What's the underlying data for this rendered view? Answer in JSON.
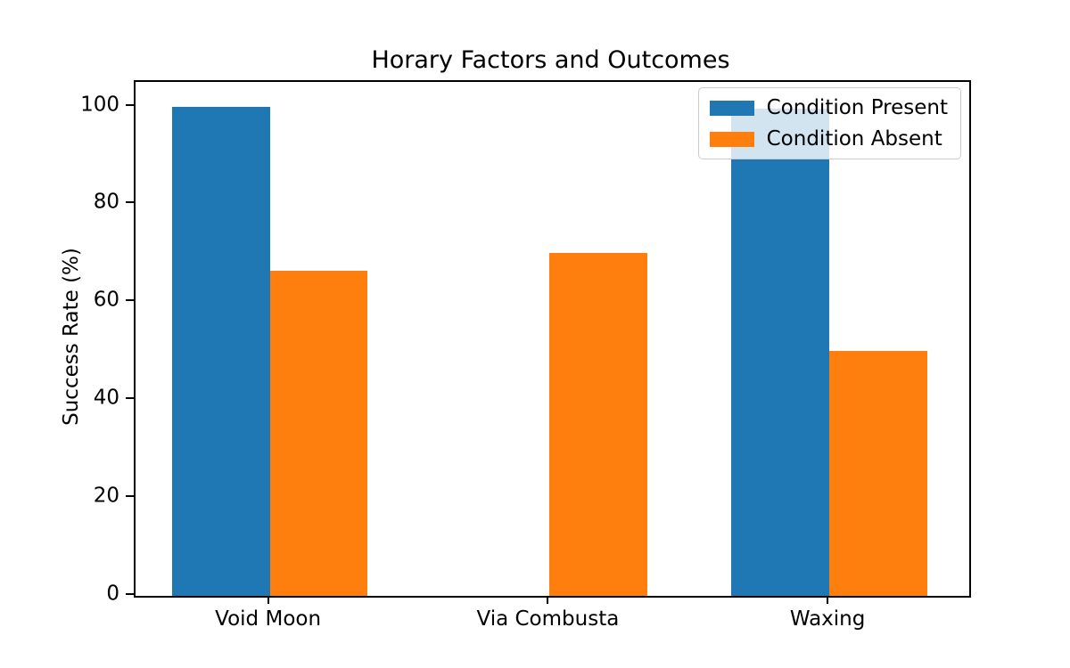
{
  "chart_data": {
    "type": "bar",
    "title": "Horary Factors and Outcomes",
    "xlabel": "",
    "ylabel": "Success Rate (%)",
    "categories": [
      "Void Moon",
      "Via Combusta",
      "Waxing"
    ],
    "series": [
      {
        "name": "Condition Present",
        "color": "#1f77b4",
        "values": [
          100,
          0,
          99.5
        ]
      },
      {
        "name": "Condition Absent",
        "color": "#ff7f0e",
        "values": [
          66.5,
          70,
          50
        ]
      }
    ],
    "yticks": [
      0,
      20,
      40,
      60,
      80,
      100
    ],
    "ylim": [
      0,
      105
    ],
    "xlim": [
      -0.48,
      2.5
    ],
    "bar_width": 0.35,
    "grid": false,
    "legend_position": "upper right",
    "background_color": "#ffffff",
    "axis_color": "#000000",
    "text_color": "#000000",
    "legend_border_color": "#cccccc"
  }
}
